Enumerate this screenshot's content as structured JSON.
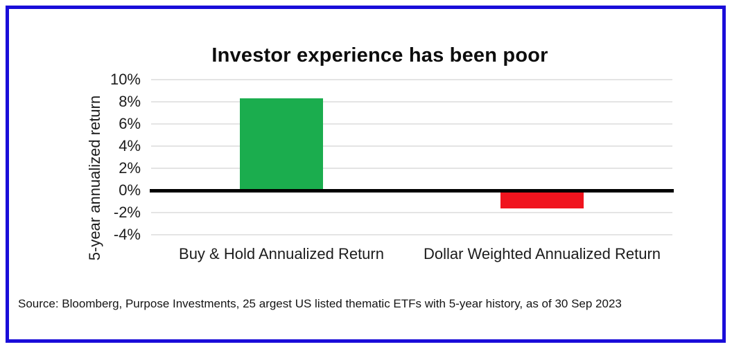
{
  "frame": {
    "border_color": "#1a0dd9",
    "background_color": "#ffffff"
  },
  "chart_data": {
    "type": "bar",
    "title": "Investor experience has been poor",
    "xlabel": "",
    "ylabel": "5-year annualized return",
    "categories": [
      "Buy & Hold Annualized Return",
      "Dollar Weighted Annualized Return"
    ],
    "values": [
      8.3,
      -1.6
    ],
    "bar_colors": [
      "#1bad4e",
      "#f0141e"
    ],
    "bar_names": [
      "buy-hold-bar",
      "dollar-weighted-bar"
    ],
    "ylim": [
      -4,
      10
    ],
    "yticks": [
      10,
      8,
      6,
      4,
      2,
      0,
      -2,
      -4
    ],
    "ytick_labels": [
      "10%",
      "8%",
      "6%",
      "4%",
      "2%",
      "0%",
      "-2%",
      "-4%"
    ],
    "grid": true,
    "gridline_color": "#e4e4e4",
    "zero_line_color": "#000000",
    "legend": "none"
  },
  "source_note": "Source: Bloomberg, Purpose Investments, 25 argest US listed thematic ETFs with 5-year history, as of 30 Sep 2023"
}
